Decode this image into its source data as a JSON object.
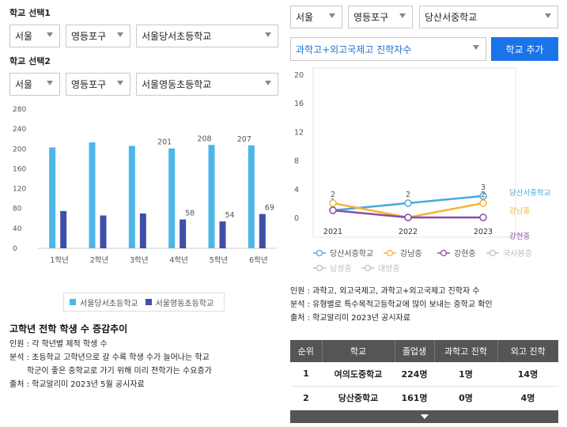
{
  "left": {
    "school1_label": "학교 선택1",
    "school1": {
      "region": "서울",
      "district": "영등포구",
      "school": "서울당서초등학교"
    },
    "school2_label": "학교 선택2",
    "school2": {
      "region": "서울",
      "district": "영등포구",
      "school": "서울영동초등학교"
    },
    "legend": [
      "서울당서초등학교",
      "서울영동초등학교"
    ],
    "info_title": "고학년 전학 학생 수 증감추이",
    "info_lines": [
      "인원 : 각 학년별 제적 학생 수",
      "분석 : 초등학교 고학년으로 갈 수록 학생 수가 늘어나는 학교",
      "학군이 좋은 중학교로 가기 위해 미리 전학가는 수요증가",
      "출처 : 학교알리미 2023년 5월 공시자료"
    ]
  },
  "right": {
    "filter": {
      "region": "서울",
      "district": "영등포구",
      "school": "당산서중학교"
    },
    "metric": "과학고+외고국제고 진학자수",
    "add_button": "학교 추가",
    "legend": [
      {
        "name": "당산서중학교",
        "active": true
      },
      {
        "name": "강남중",
        "active": true
      },
      {
        "name": "강현중",
        "active": true
      },
      {
        "name": "국사봉중",
        "active": false
      },
      {
        "name": "남성중",
        "active": false
      },
      {
        "name": "대방중",
        "active": false
      }
    ],
    "info_lines": [
      "인원 : 과학고, 외고국제고, 과학고+외고국제고 진학자 수",
      "분석 : 유형별로 특수목적고등학교에 많이 보내는 중학교 확인",
      "출처 : 학교알리미 2023년 공시자료"
    ],
    "table": {
      "headers": [
        "순위",
        "학교",
        "졸업생",
        "과학고 진학",
        "외고 진학"
      ],
      "rows": [
        [
          "1",
          "여의도중학교",
          "224명",
          "1명",
          "14명"
        ],
        [
          "2",
          "당산중학교",
          "161명",
          "0명",
          "4명"
        ]
      ]
    }
  },
  "colors": {
    "bar1": "#4db6e8",
    "bar2": "#3f4fa8",
    "line1": "#4aa8e0",
    "line2": "#f2b53a",
    "line3": "#8a4fa0",
    "accent": "#1a73e8"
  },
  "chart_data": [
    {
      "type": "bar",
      "categories": [
        "1학년",
        "2학년",
        "3학년",
        "4학년",
        "5학년",
        "6학년"
      ],
      "series": [
        {
          "name": "서울당서초등학교",
          "values": [
            203,
            213,
            206,
            201,
            208,
            207
          ],
          "labels": [
            "",
            "",
            "",
            "201",
            "208",
            "207"
          ]
        },
        {
          "name": "서울영동초등학교",
          "values": [
            75,
            66,
            70,
            58,
            54,
            69
          ],
          "labels": [
            "",
            "",
            "",
            "58",
            "54",
            "69"
          ]
        }
      ],
      "yticks": [
        0,
        40,
        80,
        120,
        160,
        200,
        240,
        280
      ],
      "ylim": [
        0,
        280
      ],
      "legend": "bottom"
    },
    {
      "type": "line",
      "x": [
        "2021",
        "2022",
        "2023"
      ],
      "series": [
        {
          "name": "당산서중학교",
          "values": [
            1,
            2,
            3
          ],
          "labels": [
            "1",
            "2",
            "3"
          ]
        },
        {
          "name": "강남중",
          "values": [
            2,
            0,
            2
          ],
          "labels": [
            "2",
            "",
            "2"
          ]
        },
        {
          "name": "강현중",
          "values": [
            1,
            0,
            0
          ],
          "labels": [
            "",
            "",
            ""
          ]
        }
      ],
      "yticks": [
        0,
        4,
        8,
        12,
        16,
        20
      ],
      "ylim": [
        0,
        20
      ],
      "legend": "bottom"
    }
  ]
}
